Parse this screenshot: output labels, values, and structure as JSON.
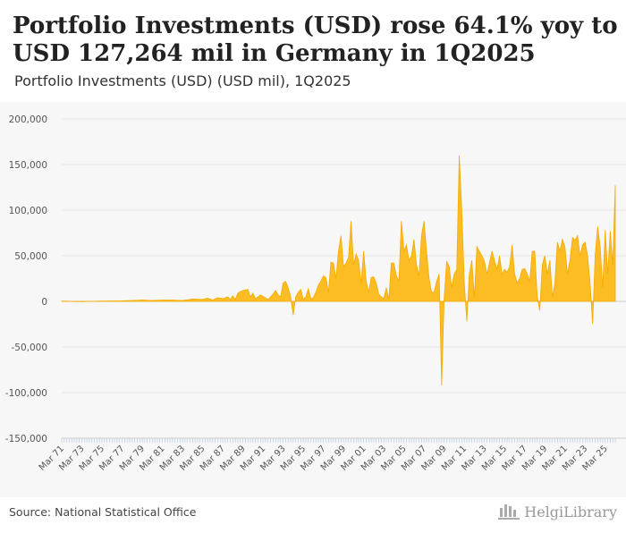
{
  "header": {
    "title": "Portfolio Investments (USD) rose 64.1% yoy to USD 127,264 mil in Germany in 1Q2025",
    "subtitle": "Portfolio Investments (USD) (USD mil), 1Q2025"
  },
  "footer": {
    "source": "Source: National Statistical Office",
    "brand": "HelgiLibrary"
  },
  "colors": {
    "fill": "#fbbd23",
    "stroke": "#f5ab00",
    "plot_bg": "#f7f7f7",
    "grid": "#e5e5e5",
    "axis_text": "#555555",
    "tick": "#b0c4de"
  },
  "chart_data": {
    "type": "area",
    "title": "Portfolio Investments (USD) (USD mil), 1Q2025",
    "ylabel": "USD mil",
    "xlabel": "",
    "ylim": [
      -150000,
      200000
    ],
    "yticks": [
      200000,
      150000,
      100000,
      50000,
      0,
      -50000,
      -100000,
      -150000
    ],
    "ytick_labels": [
      "200,000",
      "150,000",
      "100,000",
      "50,000",
      "0",
      "-50,000",
      "-100,000",
      "-150,000"
    ],
    "x_start": "1Q1971",
    "x_end": "1Q2025",
    "frequency": "quarterly",
    "xtick_labels": [
      "Mar 71",
      "Mar 73",
      "Mar 75",
      "Mar 77",
      "Mar 79",
      "Mar 81",
      "Mar 83",
      "Mar 85",
      "Mar 87",
      "Mar 89",
      "Mar 91",
      "Mar 93",
      "Mar 95",
      "Mar 97",
      "Mar 99",
      "Mar 01",
      "Mar 03",
      "Mar 05",
      "Mar 07",
      "Mar 09",
      "Mar 11",
      "Mar 13",
      "Mar 15",
      "Mar 17",
      "Mar 19",
      "Mar 21",
      "Mar 23",
      "Mar 25"
    ],
    "series": [
      {
        "name": "Portfolio Investments (USD)",
        "points": [
          [
            1971.0,
            300
          ],
          [
            1973.0,
            -300
          ],
          [
            1975.0,
            400
          ],
          [
            1977.0,
            600
          ],
          [
            1978.5,
            1200
          ],
          [
            1979.0,
            1500
          ],
          [
            1980.0,
            900
          ],
          [
            1981.0,
            1500
          ],
          [
            1982.0,
            1500
          ],
          [
            1983.0,
            900
          ],
          [
            1984.0,
            2500
          ],
          [
            1985.0,
            2200
          ],
          [
            1985.5,
            3500
          ],
          [
            1986.0,
            1500
          ],
          [
            1986.5,
            4000
          ],
          [
            1987.0,
            3000
          ],
          [
            1987.5,
            5000
          ],
          [
            1987.75,
            2000
          ],
          [
            1988.0,
            6000
          ],
          [
            1988.25,
            2000
          ],
          [
            1988.5,
            9000
          ],
          [
            1989.0,
            12000
          ],
          [
            1989.5,
            13000
          ],
          [
            1989.75,
            5000
          ],
          [
            1990.0,
            9000
          ],
          [
            1990.25,
            3000
          ],
          [
            1990.75,
            7000
          ],
          [
            1991.25,
            4000
          ],
          [
            1991.5,
            2000
          ],
          [
            1992.0,
            8000
          ],
          [
            1992.25,
            12000
          ],
          [
            1992.5,
            7000
          ],
          [
            1992.75,
            5000
          ],
          [
            1993.0,
            20000
          ],
          [
            1993.25,
            22000
          ],
          [
            1993.5,
            15000
          ],
          [
            1993.75,
            5000
          ],
          [
            1994.0,
            -15000
          ],
          [
            1994.25,
            5000
          ],
          [
            1994.5,
            10000
          ],
          [
            1994.75,
            13000
          ],
          [
            1995.0,
            2000
          ],
          [
            1995.25,
            5000
          ],
          [
            1995.5,
            14000
          ],
          [
            1995.75,
            3000
          ],
          [
            1996.0,
            4000
          ],
          [
            1996.25,
            10000
          ],
          [
            1996.5,
            18000
          ],
          [
            1996.75,
            22000
          ],
          [
            1997.0,
            28000
          ],
          [
            1997.25,
            26000
          ],
          [
            1997.5,
            10000
          ],
          [
            1997.75,
            43000
          ],
          [
            1998.0,
            42000
          ],
          [
            1998.25,
            25000
          ],
          [
            1998.5,
            55000
          ],
          [
            1998.75,
            72000
          ],
          [
            1999.0,
            38000
          ],
          [
            1999.25,
            42000
          ],
          [
            1999.5,
            48000
          ],
          [
            1999.75,
            88000
          ],
          [
            2000.0,
            40000
          ],
          [
            2000.25,
            52000
          ],
          [
            2000.5,
            45000
          ],
          [
            2000.75,
            20000
          ],
          [
            2001.0,
            55000
          ],
          [
            2001.25,
            22000
          ],
          [
            2001.5,
            10000
          ],
          [
            2001.75,
            26000
          ],
          [
            2002.0,
            27000
          ],
          [
            2002.25,
            20000
          ],
          [
            2002.5,
            8000
          ],
          [
            2002.75,
            5000
          ],
          [
            2003.0,
            3000
          ],
          [
            2003.25,
            15000
          ],
          [
            2003.5,
            2000
          ],
          [
            2003.75,
            42000
          ],
          [
            2004.0,
            42000
          ],
          [
            2004.25,
            28000
          ],
          [
            2004.5,
            22000
          ],
          [
            2004.75,
            88000
          ],
          [
            2005.0,
            55000
          ],
          [
            2005.25,
            62000
          ],
          [
            2005.5,
            45000
          ],
          [
            2005.75,
            50000
          ],
          [
            2006.0,
            68000
          ],
          [
            2006.25,
            40000
          ],
          [
            2006.5,
            28000
          ],
          [
            2006.75,
            72000
          ],
          [
            2007.0,
            88000
          ],
          [
            2007.25,
            55000
          ],
          [
            2007.5,
            25000
          ],
          [
            2007.75,
            10000
          ],
          [
            2008.0,
            10000
          ],
          [
            2008.25,
            22000
          ],
          [
            2008.5,
            30000
          ],
          [
            2008.75,
            -92000
          ],
          [
            2009.0,
            3000
          ],
          [
            2009.25,
            44000
          ],
          [
            2009.5,
            38000
          ],
          [
            2009.75,
            15000
          ],
          [
            2010.0,
            30000
          ],
          [
            2010.25,
            35000
          ],
          [
            2010.5,
            160000
          ],
          [
            2010.75,
            100000
          ],
          [
            2011.0,
            20000
          ],
          [
            2011.25,
            -22000
          ],
          [
            2011.5,
            30000
          ],
          [
            2011.75,
            45000
          ],
          [
            2012.0,
            4000
          ],
          [
            2012.25,
            60000
          ],
          [
            2012.5,
            55000
          ],
          [
            2012.75,
            50000
          ],
          [
            2013.0,
            44000
          ],
          [
            2013.25,
            30000
          ],
          [
            2013.5,
            42000
          ],
          [
            2013.75,
            55000
          ],
          [
            2014.0,
            45000
          ],
          [
            2014.25,
            35000
          ],
          [
            2014.5,
            50000
          ],
          [
            2014.75,
            30000
          ],
          [
            2015.0,
            35000
          ],
          [
            2015.25,
            32000
          ],
          [
            2015.5,
            38000
          ],
          [
            2015.75,
            62000
          ],
          [
            2016.0,
            30000
          ],
          [
            2016.25,
            20000
          ],
          [
            2016.5,
            25000
          ],
          [
            2016.75,
            35000
          ],
          [
            2017.0,
            36000
          ],
          [
            2017.25,
            30000
          ],
          [
            2017.5,
            22000
          ],
          [
            2017.75,
            55000
          ],
          [
            2018.0,
            55000
          ],
          [
            2018.25,
            5000
          ],
          [
            2018.5,
            -10000
          ],
          [
            2018.75,
            40000
          ],
          [
            2019.0,
            50000
          ],
          [
            2019.25,
            30000
          ],
          [
            2019.5,
            45000
          ],
          [
            2019.75,
            5000
          ],
          [
            2020.0,
            20000
          ],
          [
            2020.25,
            65000
          ],
          [
            2020.5,
            55000
          ],
          [
            2020.75,
            68000
          ],
          [
            2021.0,
            60000
          ],
          [
            2021.25,
            30000
          ],
          [
            2021.5,
            45000
          ],
          [
            2021.75,
            70000
          ],
          [
            2022.0,
            67000
          ],
          [
            2022.25,
            72000
          ],
          [
            2022.5,
            50000
          ],
          [
            2022.75,
            62000
          ],
          [
            2023.0,
            65000
          ],
          [
            2023.25,
            50000
          ],
          [
            2023.5,
            20000
          ],
          [
            2023.75,
            -25000
          ],
          [
            2024.0,
            50000
          ],
          [
            2024.25,
            82000
          ],
          [
            2024.5,
            60000
          ],
          [
            2024.75,
            15000
          ],
          [
            2025.0,
            78000
          ],
          [
            2025.25,
            30000
          ],
          [
            2025.5,
            77000
          ],
          [
            2025.75,
            40000
          ],
          [
            2026.0,
            127264
          ]
        ]
      }
    ]
  }
}
